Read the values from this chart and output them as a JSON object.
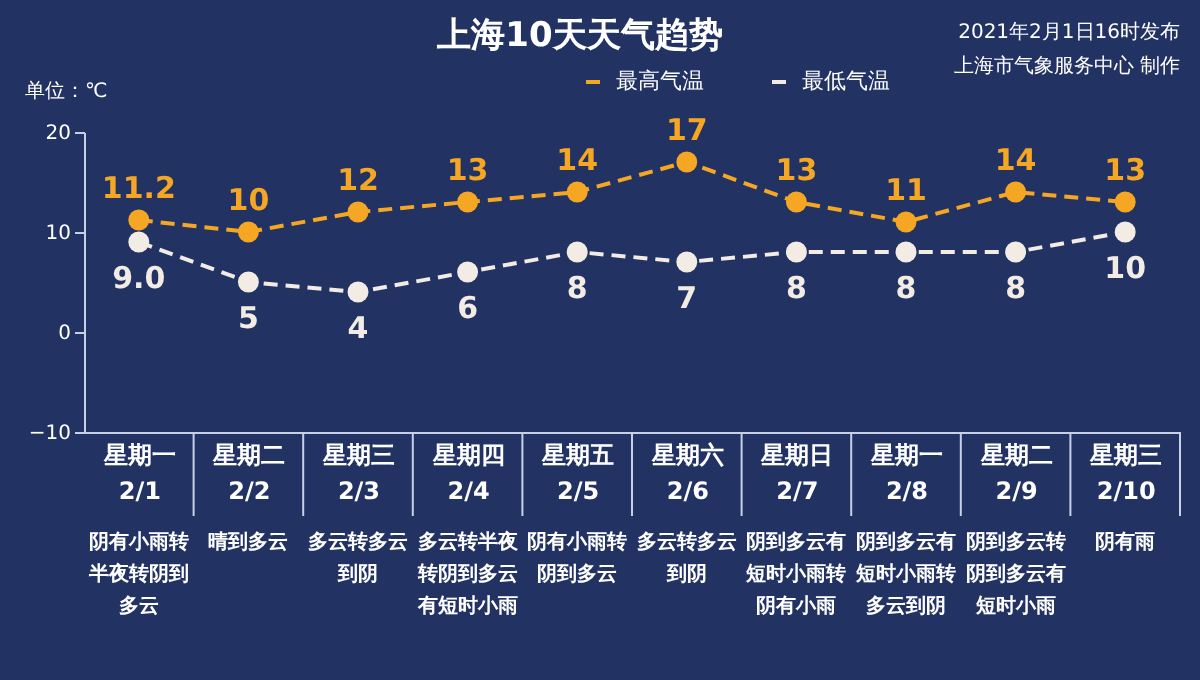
{
  "chart_data": {
    "type": "line",
    "title": "上海10天天气趋势",
    "ylabel": "单位：℃",
    "categories": [
      "星期一 2/1",
      "星期二 2/2",
      "星期三 2/3",
      "星期四 2/4",
      "星期五 2/5",
      "星期六 2/6",
      "星期日 2/7",
      "星期一 2/8",
      "星期二 2/9",
      "星期三 2/10"
    ],
    "series": [
      {
        "name": "最高气温",
        "color": "#f5a623",
        "values": [
          11.2,
          10,
          12,
          13,
          14,
          17,
          13,
          11,
          14,
          13
        ],
        "value_labels": [
          "11.2",
          "10",
          "12",
          "13",
          "14",
          "17",
          "13",
          "11",
          "14",
          "13"
        ]
      },
      {
        "name": "最低气温",
        "color": "#f2ece4",
        "values": [
          9.0,
          5,
          4,
          6,
          8,
          7,
          8,
          8,
          8,
          10
        ],
        "value_labels": [
          "9.0",
          "5",
          "4",
          "6",
          "8",
          "7",
          "8",
          "8",
          "8",
          "10"
        ]
      }
    ],
    "ylim": [
      -10,
      20
    ],
    "yticks": [
      -10,
      0,
      10,
      20
    ],
    "grid": false,
    "legend": "top",
    "marker": "circle",
    "line_style": "dashed",
    "annotations": [
      "2021年2月1日16时发布",
      "上海市气象服务中心 制作",
      "阴有小雨转半夜转阴到多云",
      "晴到多云",
      "多云转多云到阴",
      "多云转半夜转阴到多云有短时小雨",
      "阴有小雨转阴到多云",
      "多云转多云到阴",
      "阴到多云有短时小雨转阴有小雨",
      "阴到多云有短时小雨转多云到阴",
      "阴到多云转阴到多云有短时小雨",
      "阴有雨"
    ]
  }
}
